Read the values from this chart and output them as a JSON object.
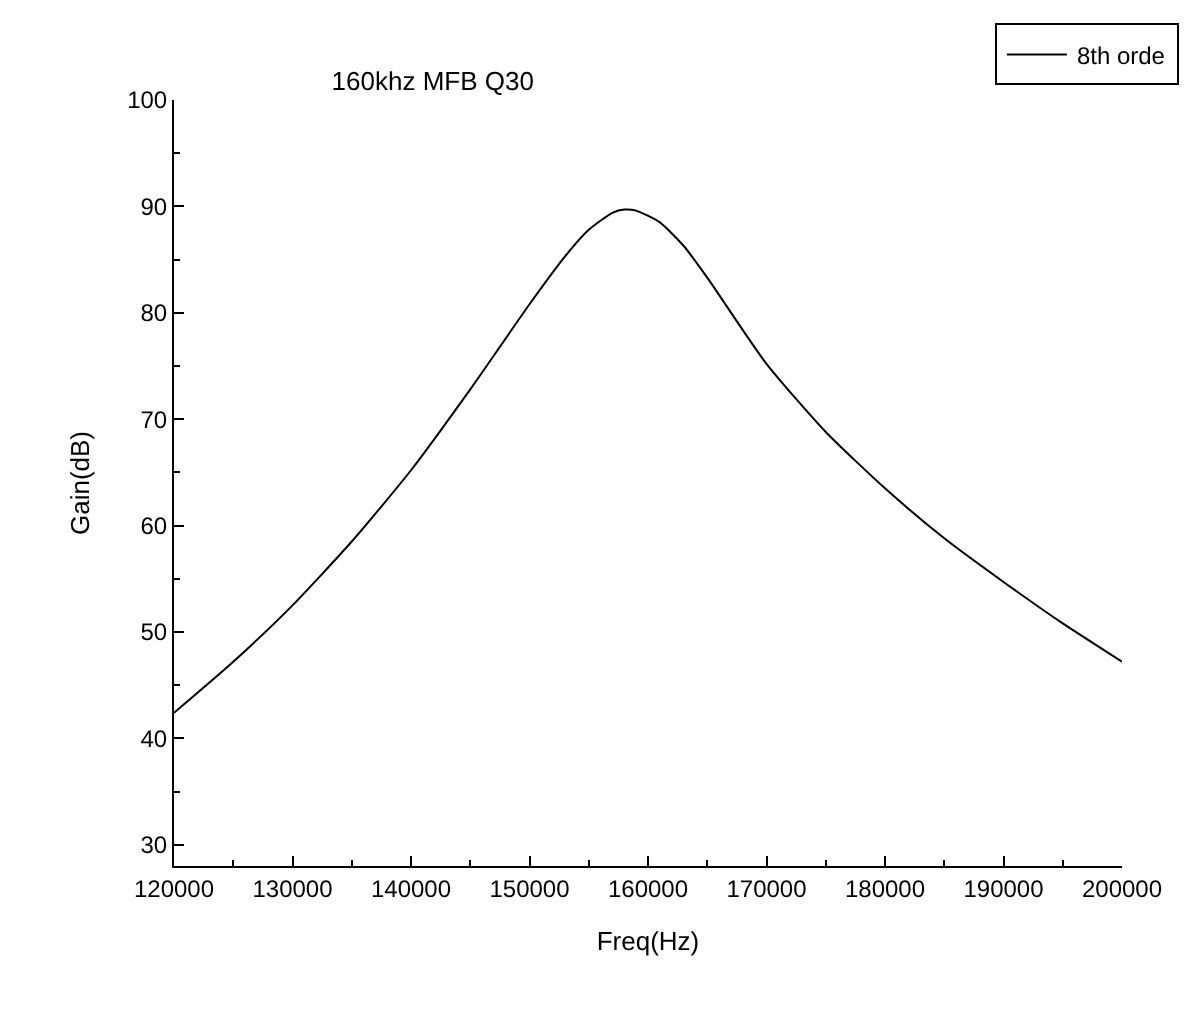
{
  "chart_data": {
    "type": "line",
    "title": "160khz MFB Q30",
    "xlabel": "Freq(Hz)",
    "ylabel": "Gain(dB)",
    "x": [
      120000,
      125000,
      130000,
      135000,
      140000,
      145000,
      150000,
      153000,
      155000,
      157000,
      158000,
      159000,
      161000,
      163000,
      165000,
      170000,
      175000,
      180000,
      185000,
      190000,
      195000,
      200000
    ],
    "series": [
      {
        "name": "8th orde",
        "color": "#000000",
        "values": [
          42.4,
          47.2,
          52.5,
          58.5,
          65.2,
          72.8,
          80.8,
          85.3,
          87.8,
          89.4,
          89.7,
          89.6,
          88.5,
          86.3,
          83.3,
          75.2,
          68.8,
          63.5,
          58.8,
          54.7,
          50.8,
          47.2
        ]
      }
    ],
    "xlim": [
      120000,
      200000
    ],
    "xticks": [
      120000,
      130000,
      140000,
      150000,
      160000,
      170000,
      180000,
      190000,
      200000
    ],
    "ylim": [
      28,
      100
    ],
    "yticks": [
      30,
      40,
      50,
      60,
      70,
      80,
      90,
      100
    ],
    "legend": "top right",
    "marker": "none",
    "line_style": "solid"
  }
}
